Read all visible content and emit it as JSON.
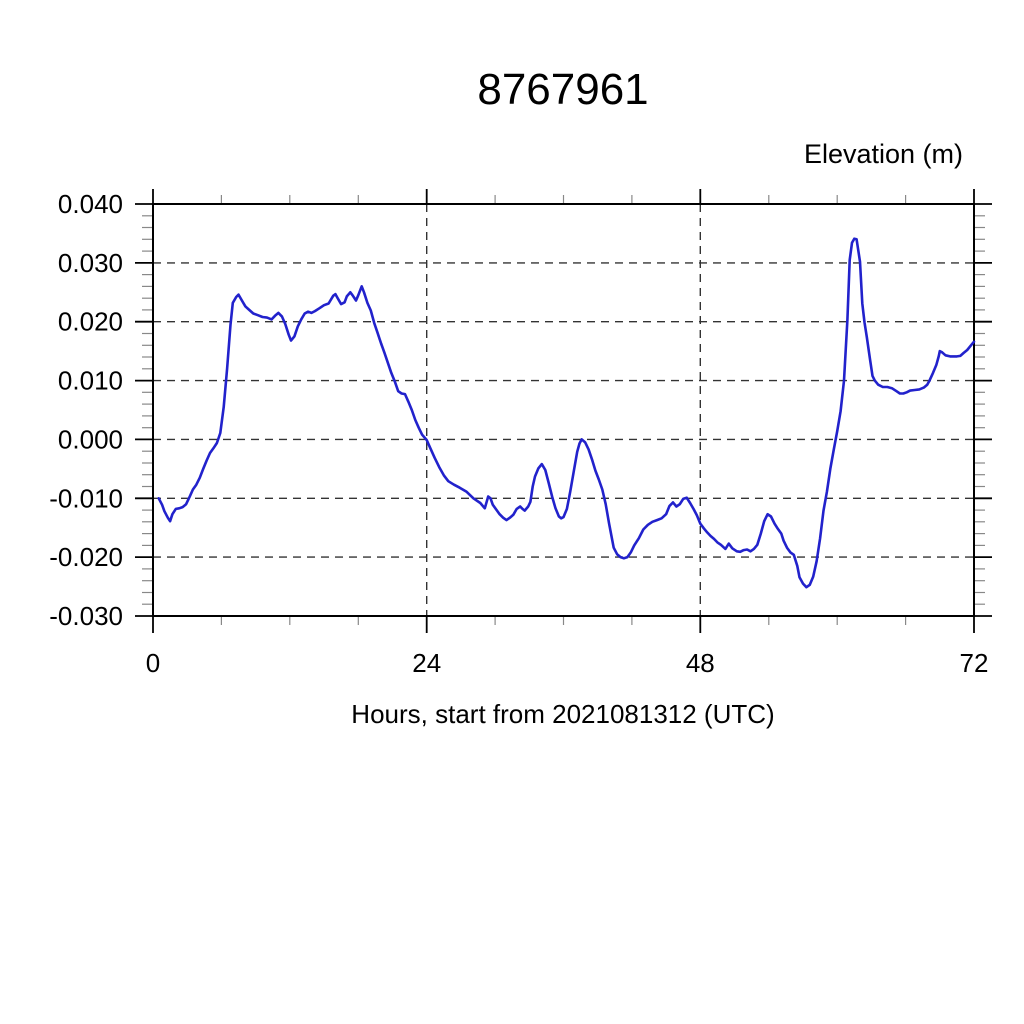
{
  "chart_data": {
    "type": "line",
    "title": "8767961",
    "y_axis_label": "Elevation (m)",
    "x_axis_label": "Hours, start from 2021081312 (UTC)",
    "xlim": [
      0,
      72
    ],
    "ylim": [
      -0.03,
      0.04
    ],
    "x_major_ticks": [
      0,
      24,
      48,
      72
    ],
    "x_tick_labels": [
      "0",
      "24",
      "48",
      "72"
    ],
    "x_minor_tick_step": 6,
    "y_major_ticks": [
      0.04,
      0.03,
      0.02,
      0.01,
      0.0,
      -0.01,
      -0.02,
      -0.03
    ],
    "y_tick_labels": [
      "0.040",
      "0.030",
      "0.020",
      "0.010",
      "0.000",
      "-0.010",
      "-0.020",
      "-0.030"
    ],
    "y_minor_tick_step": 0.002,
    "grid": {
      "style": "dashed",
      "h_lines": [
        0.04,
        0.03,
        0.02,
        0.01,
        0.0,
        -0.01,
        -0.02,
        -0.03
      ],
      "v_lines": [
        24,
        48
      ]
    },
    "legend": "none",
    "colors": {
      "line": "#2222cc",
      "grid": "#333333",
      "axis": "#000000",
      "minor_tick": "#888888",
      "background": "#ffffff",
      "text": "#000000"
    },
    "series": [
      {
        "name": "elevation",
        "points": [
          [
            0.5,
            -0.01
          ],
          [
            0.8,
            -0.0111
          ],
          [
            1.0,
            -0.0122
          ],
          [
            1.3,
            -0.0133
          ],
          [
            1.5,
            -0.0139
          ],
          [
            1.7,
            -0.0127
          ],
          [
            2.0,
            -0.0118
          ],
          [
            2.3,
            -0.0117
          ],
          [
            2.6,
            -0.0115
          ],
          [
            2.9,
            -0.011
          ],
          [
            3.2,
            -0.0098
          ],
          [
            3.5,
            -0.0085
          ],
          [
            3.8,
            -0.0077
          ],
          [
            4.1,
            -0.0065
          ],
          [
            4.4,
            -0.005
          ],
          [
            4.7,
            -0.0036
          ],
          [
            5.0,
            -0.0023
          ],
          [
            5.3,
            -0.0015
          ],
          [
            5.6,
            -0.0006
          ],
          [
            5.9,
            0.0011
          ],
          [
            6.2,
            0.0055
          ],
          [
            6.5,
            0.012
          ],
          [
            6.8,
            0.0195
          ],
          [
            7.0,
            0.0232
          ],
          [
            7.3,
            0.0242
          ],
          [
            7.5,
            0.0246
          ],
          [
            7.8,
            0.0236
          ],
          [
            8.1,
            0.0226
          ],
          [
            8.5,
            0.0219
          ],
          [
            8.8,
            0.0214
          ],
          [
            9.2,
            0.0211
          ],
          [
            9.6,
            0.0208
          ],
          [
            10.0,
            0.0207
          ],
          [
            10.4,
            0.0204
          ],
          [
            10.7,
            0.021
          ],
          [
            11.0,
            0.0215
          ],
          [
            11.3,
            0.0209
          ],
          [
            11.6,
            0.0196
          ],
          [
            11.9,
            0.0178
          ],
          [
            12.1,
            0.0168
          ],
          [
            12.4,
            0.0175
          ],
          [
            12.7,
            0.0192
          ],
          [
            13.0,
            0.0204
          ],
          [
            13.3,
            0.0214
          ],
          [
            13.6,
            0.0217
          ],
          [
            13.9,
            0.0215
          ],
          [
            14.2,
            0.0218
          ],
          [
            14.6,
            0.0223
          ],
          [
            15.0,
            0.0228
          ],
          [
            15.4,
            0.0231
          ],
          [
            15.8,
            0.0244
          ],
          [
            16.0,
            0.0247
          ],
          [
            16.2,
            0.024
          ],
          [
            16.5,
            0.023
          ],
          [
            16.8,
            0.0233
          ],
          [
            17.0,
            0.0243
          ],
          [
            17.3,
            0.025
          ],
          [
            17.5,
            0.0245
          ],
          [
            17.8,
            0.0236
          ],
          [
            18.0,
            0.0245
          ],
          [
            18.3,
            0.026
          ],
          [
            18.5,
            0.025
          ],
          [
            18.8,
            0.0232
          ],
          [
            19.1,
            0.0219
          ],
          [
            19.4,
            0.0198
          ],
          [
            19.7,
            0.0181
          ],
          [
            20.0,
            0.0163
          ],
          [
            20.3,
            0.0147
          ],
          [
            20.6,
            0.013
          ],
          [
            20.9,
            0.0113
          ],
          [
            21.2,
            0.0099
          ],
          [
            21.5,
            0.0082
          ],
          [
            21.8,
            0.0078
          ],
          [
            22.1,
            0.0077
          ],
          [
            22.4,
            0.0064
          ],
          [
            22.7,
            0.005
          ],
          [
            23.0,
            0.0033
          ],
          [
            23.3,
            0.002
          ],
          [
            23.6,
            0.0008
          ],
          [
            24.0,
            -0.0001
          ],
          [
            24.3,
            -0.0014
          ],
          [
            24.7,
            -0.0031
          ],
          [
            25.1,
            -0.0047
          ],
          [
            25.5,
            -0.0061
          ],
          [
            25.9,
            -0.0071
          ],
          [
            26.4,
            -0.0077
          ],
          [
            26.9,
            -0.0082
          ],
          [
            27.5,
            -0.0089
          ],
          [
            28.1,
            -0.01
          ],
          [
            28.7,
            -0.0108
          ],
          [
            29.1,
            -0.0117
          ],
          [
            29.4,
            -0.0097
          ],
          [
            29.6,
            -0.01
          ],
          [
            29.8,
            -0.0111
          ],
          [
            30.1,
            -0.0119
          ],
          [
            30.4,
            -0.0127
          ],
          [
            30.7,
            -0.0133
          ],
          [
            31.0,
            -0.0137
          ],
          [
            31.3,
            -0.0133
          ],
          [
            31.6,
            -0.0128
          ],
          [
            31.9,
            -0.0118
          ],
          [
            32.2,
            -0.0114
          ],
          [
            32.4,
            -0.0118
          ],
          [
            32.6,
            -0.0121
          ],
          [
            32.9,
            -0.0114
          ],
          [
            33.1,
            -0.0106
          ],
          [
            33.3,
            -0.008
          ],
          [
            33.5,
            -0.0063
          ],
          [
            33.8,
            -0.0049
          ],
          [
            34.1,
            -0.0042
          ],
          [
            34.4,
            -0.0052
          ],
          [
            34.7,
            -0.0074
          ],
          [
            35.0,
            -0.0097
          ],
          [
            35.3,
            -0.0117
          ],
          [
            35.6,
            -0.0131
          ],
          [
            35.8,
            -0.0134
          ],
          [
            36.0,
            -0.0132
          ],
          [
            36.3,
            -0.0118
          ],
          [
            36.6,
            -0.0088
          ],
          [
            36.9,
            -0.0054
          ],
          [
            37.2,
            -0.0021
          ],
          [
            37.4,
            -0.0007
          ],
          [
            37.6,
            0.0
          ],
          [
            37.9,
            -0.0005
          ],
          [
            38.2,
            -0.0017
          ],
          [
            38.5,
            -0.0034
          ],
          [
            38.8,
            -0.0053
          ],
          [
            39.1,
            -0.0068
          ],
          [
            39.4,
            -0.0085
          ],
          [
            39.7,
            -0.011
          ],
          [
            40.0,
            -0.0143
          ],
          [
            40.4,
            -0.0184
          ],
          [
            40.7,
            -0.0195
          ],
          [
            41.0,
            -0.02
          ],
          [
            41.3,
            -0.0202
          ],
          [
            41.6,
            -0.02
          ],
          [
            41.9,
            -0.0192
          ],
          [
            42.2,
            -0.018
          ],
          [
            42.6,
            -0.0168
          ],
          [
            43.0,
            -0.0153
          ],
          [
            43.4,
            -0.0145
          ],
          [
            43.8,
            -0.014
          ],
          [
            44.2,
            -0.0137
          ],
          [
            44.6,
            -0.0134
          ],
          [
            45.0,
            -0.0127
          ],
          [
            45.3,
            -0.0113
          ],
          [
            45.6,
            -0.0107
          ],
          [
            45.9,
            -0.0114
          ],
          [
            46.2,
            -0.011
          ],
          [
            46.5,
            -0.0101
          ],
          [
            46.8,
            -0.0099
          ],
          [
            47.1,
            -0.0108
          ],
          [
            47.4,
            -0.0118
          ],
          [
            47.7,
            -0.0129
          ],
          [
            48.0,
            -0.0143
          ],
          [
            48.3,
            -0.0151
          ],
          [
            48.6,
            -0.0158
          ],
          [
            48.9,
            -0.0164
          ],
          [
            49.2,
            -0.0169
          ],
          [
            49.5,
            -0.0175
          ],
          [
            49.8,
            -0.0179
          ],
          [
            50.2,
            -0.0186
          ],
          [
            50.5,
            -0.0177
          ],
          [
            50.8,
            -0.0185
          ],
          [
            51.2,
            -0.019
          ],
          [
            51.5,
            -0.0191
          ],
          [
            51.8,
            -0.0188
          ],
          [
            52.1,
            -0.0187
          ],
          [
            52.4,
            -0.019
          ],
          [
            52.7,
            -0.0186
          ],
          [
            53.0,
            -0.0179
          ],
          [
            53.3,
            -0.016
          ],
          [
            53.6,
            -0.0139
          ],
          [
            53.9,
            -0.0127
          ],
          [
            54.2,
            -0.0131
          ],
          [
            54.5,
            -0.0143
          ],
          [
            54.8,
            -0.0152
          ],
          [
            55.1,
            -0.016
          ],
          [
            55.3,
            -0.0172
          ],
          [
            55.6,
            -0.0184
          ],
          [
            55.9,
            -0.0192
          ],
          [
            56.2,
            -0.0196
          ],
          [
            56.5,
            -0.0215
          ],
          [
            56.7,
            -0.0234
          ],
          [
            57.0,
            -0.0245
          ],
          [
            57.3,
            -0.0251
          ],
          [
            57.6,
            -0.0247
          ],
          [
            57.9,
            -0.0233
          ],
          [
            58.2,
            -0.0207
          ],
          [
            58.5,
            -0.0168
          ],
          [
            58.8,
            -0.0121
          ],
          [
            59.1,
            -0.0089
          ],
          [
            59.4,
            -0.005
          ],
          [
            59.7,
            -0.0018
          ],
          [
            60.0,
            0.0014
          ],
          [
            60.3,
            0.0048
          ],
          [
            60.6,
            0.01
          ],
          [
            60.9,
            0.0203
          ],
          [
            61.1,
            0.0305
          ],
          [
            61.3,
            0.0334
          ],
          [
            61.5,
            0.0341
          ],
          [
            61.7,
            0.034
          ],
          [
            62.0,
            0.0302
          ],
          [
            62.2,
            0.0231
          ],
          [
            62.4,
            0.0199
          ],
          [
            62.6,
            0.0174
          ],
          [
            62.9,
            0.0134
          ],
          [
            63.1,
            0.0108
          ],
          [
            63.3,
            0.01
          ],
          [
            63.6,
            0.0093
          ],
          [
            64.0,
            0.0089
          ],
          [
            64.4,
            0.0089
          ],
          [
            64.8,
            0.0087
          ],
          [
            65.2,
            0.0082
          ],
          [
            65.5,
            0.0078
          ],
          [
            65.8,
            0.0078
          ],
          [
            66.1,
            0.008
          ],
          [
            66.4,
            0.0083
          ],
          [
            66.8,
            0.0084
          ],
          [
            67.2,
            0.0085
          ],
          [
            67.6,
            0.0088
          ],
          [
            67.9,
            0.0093
          ],
          [
            68.1,
            0.01
          ],
          [
            68.4,
            0.0113
          ],
          [
            68.7,
            0.0127
          ],
          [
            68.9,
            0.0141
          ],
          [
            69.0,
            0.015
          ],
          [
            69.2,
            0.0148
          ],
          [
            69.5,
            0.0143
          ],
          [
            69.9,
            0.0141
          ],
          [
            70.2,
            0.0141
          ],
          [
            70.5,
            0.0141
          ],
          [
            70.8,
            0.0142
          ],
          [
            71.1,
            0.0147
          ],
          [
            71.4,
            0.0152
          ],
          [
            71.7,
            0.0159
          ],
          [
            72.0,
            0.0166
          ]
        ]
      }
    ]
  }
}
